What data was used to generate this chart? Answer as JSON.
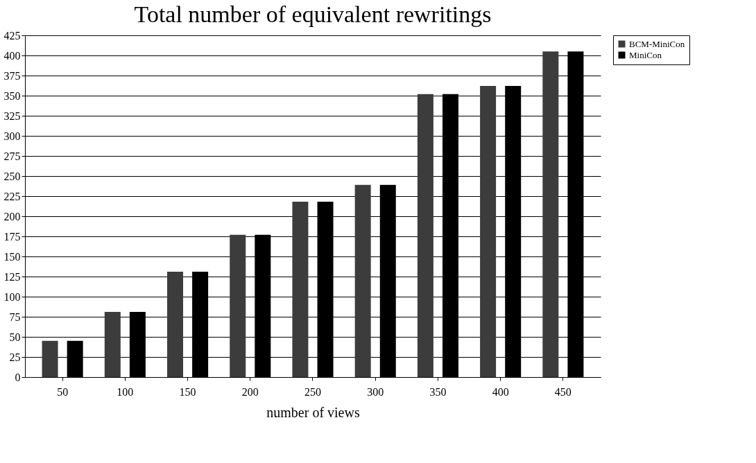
{
  "chart_data": {
    "type": "bar",
    "title": "Total number of equivalent rewritings",
    "xlabel": "number of views",
    "categories": [
      "50",
      "100",
      "150",
      "200",
      "250",
      "300",
      "350",
      "400",
      "450"
    ],
    "series": [
      {
        "name": "BCM-MiniCon",
        "color": "#3c3c3c",
        "values": [
          45,
          81,
          131,
          177,
          218,
          239,
          352,
          362,
          405
        ]
      },
      {
        "name": "MiniCon",
        "color": "#000000",
        "values": [
          45,
          81,
          131,
          177,
          218,
          239,
          352,
          362,
          405
        ]
      }
    ],
    "ylim": [
      0,
      425
    ],
    "yticks": [
      0,
      25,
      50,
      75,
      100,
      125,
      150,
      175,
      200,
      225,
      250,
      275,
      300,
      325,
      350,
      375,
      400,
      425
    ],
    "grid": "y",
    "legend": "right"
  }
}
